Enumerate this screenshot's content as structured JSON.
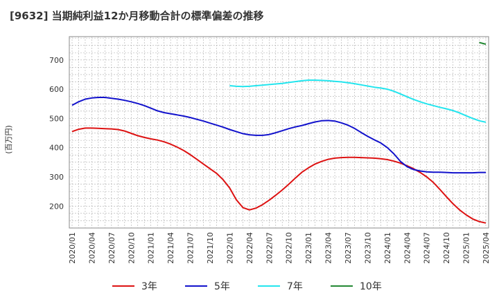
{
  "chart_data": {
    "type": "line",
    "title": "[9632]  当期純利益12か月移動合計の標準偏差の推移",
    "ylabel": "(百万円)",
    "xlabel": "",
    "ylim": [
      125,
      780
    ],
    "yticks": [
      200,
      300,
      400,
      500,
      600,
      700
    ],
    "x_ticks": [
      "2020/01",
      "2020/04",
      "2020/07",
      "2020/10",
      "2021/01",
      "2021/04",
      "2021/07",
      "2021/10",
      "2022/01",
      "2022/04",
      "2022/07",
      "2022/10",
      "2023/01",
      "2023/04",
      "2023/07",
      "2023/10",
      "2024/01",
      "2024/04",
      "2024/07",
      "2024/10",
      "2025/01",
      "2025/04"
    ],
    "grid": true,
    "legend_position": "bottom",
    "series": [
      {
        "name": "3年",
        "color": "#dd1111",
        "points": [
          [
            "2020/01",
            455
          ],
          [
            "2020/02",
            463
          ],
          [
            "2020/03",
            467
          ],
          [
            "2020/04",
            467
          ],
          [
            "2020/05",
            466
          ],
          [
            "2020/06",
            465
          ],
          [
            "2020/07",
            464
          ],
          [
            "2020/08",
            462
          ],
          [
            "2020/09",
            457
          ],
          [
            "2020/10",
            449
          ],
          [
            "2020/11",
            441
          ],
          [
            "2020/12",
            435
          ],
          [
            "2021/01",
            430
          ],
          [
            "2021/02",
            426
          ],
          [
            "2021/03",
            420
          ],
          [
            "2021/04",
            412
          ],
          [
            "2021/05",
            402
          ],
          [
            "2021/06",
            390
          ],
          [
            "2021/07",
            376
          ],
          [
            "2021/08",
            360
          ],
          [
            "2021/09",
            344
          ],
          [
            "2021/10",
            328
          ],
          [
            "2021/11",
            312
          ],
          [
            "2021/12",
            290
          ],
          [
            "2022/01",
            262
          ],
          [
            "2022/02",
            222
          ],
          [
            "2022/03",
            195
          ],
          [
            "2022/04",
            187
          ],
          [
            "2022/05",
            193
          ],
          [
            "2022/06",
            205
          ],
          [
            "2022/07",
            220
          ],
          [
            "2022/08",
            237
          ],
          [
            "2022/09",
            255
          ],
          [
            "2022/10",
            275
          ],
          [
            "2022/11",
            296
          ],
          [
            "2022/12",
            316
          ],
          [
            "2023/01",
            331
          ],
          [
            "2023/02",
            344
          ],
          [
            "2023/03",
            353
          ],
          [
            "2023/04",
            360
          ],
          [
            "2023/05",
            364
          ],
          [
            "2023/06",
            366
          ],
          [
            "2023/07",
            367
          ],
          [
            "2023/08",
            367
          ],
          [
            "2023/09",
            366
          ],
          [
            "2023/10",
            365
          ],
          [
            "2023/11",
            364
          ],
          [
            "2023/12",
            362
          ],
          [
            "2024/01",
            359
          ],
          [
            "2024/02",
            354
          ],
          [
            "2024/03",
            347
          ],
          [
            "2024/04",
            338
          ],
          [
            "2024/05",
            328
          ],
          [
            "2024/06",
            315
          ],
          [
            "2024/07",
            300
          ],
          [
            "2024/08",
            281
          ],
          [
            "2024/09",
            257
          ],
          [
            "2024/10",
            232
          ],
          [
            "2024/11",
            208
          ],
          [
            "2024/12",
            187
          ],
          [
            "2025/01",
            170
          ],
          [
            "2025/02",
            156
          ],
          [
            "2025/03",
            147
          ],
          [
            "2025/04",
            142
          ]
        ]
      },
      {
        "name": "5年",
        "color": "#1111cc",
        "points": [
          [
            "2020/01",
            545
          ],
          [
            "2020/02",
            557
          ],
          [
            "2020/03",
            566
          ],
          [
            "2020/04",
            570
          ],
          [
            "2020/05",
            572
          ],
          [
            "2020/06",
            572
          ],
          [
            "2020/07",
            569
          ],
          [
            "2020/08",
            566
          ],
          [
            "2020/09",
            562
          ],
          [
            "2020/10",
            557
          ],
          [
            "2020/11",
            551
          ],
          [
            "2020/12",
            544
          ],
          [
            "2021/01",
            535
          ],
          [
            "2021/02",
            526
          ],
          [
            "2021/03",
            520
          ],
          [
            "2021/04",
            516
          ],
          [
            "2021/05",
            512
          ],
          [
            "2021/06",
            508
          ],
          [
            "2021/07",
            503
          ],
          [
            "2021/08",
            497
          ],
          [
            "2021/09",
            491
          ],
          [
            "2021/10",
            484
          ],
          [
            "2021/11",
            477
          ],
          [
            "2021/12",
            470
          ],
          [
            "2022/01",
            462
          ],
          [
            "2022/02",
            455
          ],
          [
            "2022/03",
            448
          ],
          [
            "2022/04",
            444
          ],
          [
            "2022/05",
            442
          ],
          [
            "2022/06",
            442
          ],
          [
            "2022/07",
            445
          ],
          [
            "2022/08",
            451
          ],
          [
            "2022/09",
            458
          ],
          [
            "2022/10",
            465
          ],
          [
            "2022/11",
            471
          ],
          [
            "2022/12",
            476
          ],
          [
            "2023/01",
            482
          ],
          [
            "2023/02",
            488
          ],
          [
            "2023/03",
            492
          ],
          [
            "2023/04",
            493
          ],
          [
            "2023/05",
            491
          ],
          [
            "2023/06",
            485
          ],
          [
            "2023/07",
            477
          ],
          [
            "2023/08",
            466
          ],
          [
            "2023/09",
            452
          ],
          [
            "2023/10",
            439
          ],
          [
            "2023/11",
            427
          ],
          [
            "2023/12",
            416
          ],
          [
            "2024/01",
            400
          ],
          [
            "2024/02",
            379
          ],
          [
            "2024/03",
            353
          ],
          [
            "2024/04",
            335
          ],
          [
            "2024/05",
            325
          ],
          [
            "2024/06",
            320
          ],
          [
            "2024/07",
            317
          ],
          [
            "2024/08",
            316
          ],
          [
            "2024/09",
            316
          ],
          [
            "2024/10",
            315
          ],
          [
            "2024/11",
            314
          ],
          [
            "2024/12",
            314
          ],
          [
            "2025/01",
            314
          ],
          [
            "2025/02",
            314
          ],
          [
            "2025/03",
            315
          ],
          [
            "2025/04",
            315
          ]
        ]
      },
      {
        "name": "7年",
        "color": "#22e5ee",
        "points": [
          [
            "2022/01",
            612
          ],
          [
            "2022/02",
            610
          ],
          [
            "2022/03",
            609
          ],
          [
            "2022/04",
            610
          ],
          [
            "2022/05",
            612
          ],
          [
            "2022/06",
            614
          ],
          [
            "2022/07",
            616
          ],
          [
            "2022/08",
            618
          ],
          [
            "2022/09",
            620
          ],
          [
            "2022/10",
            623
          ],
          [
            "2022/11",
            626
          ],
          [
            "2022/12",
            629
          ],
          [
            "2023/01",
            631
          ],
          [
            "2023/02",
            631
          ],
          [
            "2023/03",
            630
          ],
          [
            "2023/04",
            629
          ],
          [
            "2023/05",
            627
          ],
          [
            "2023/06",
            625
          ],
          [
            "2023/07",
            622
          ],
          [
            "2023/08",
            619
          ],
          [
            "2023/09",
            615
          ],
          [
            "2023/10",
            611
          ],
          [
            "2023/11",
            607
          ],
          [
            "2023/12",
            604
          ],
          [
            "2024/01",
            600
          ],
          [
            "2024/02",
            593
          ],
          [
            "2024/03",
            584
          ],
          [
            "2024/04",
            574
          ],
          [
            "2024/05",
            565
          ],
          [
            "2024/06",
            557
          ],
          [
            "2024/07",
            550
          ],
          [
            "2024/08",
            544
          ],
          [
            "2024/09",
            538
          ],
          [
            "2024/10",
            533
          ],
          [
            "2024/11",
            527
          ],
          [
            "2024/12",
            519
          ],
          [
            "2025/01",
            509
          ],
          [
            "2025/02",
            500
          ],
          [
            "2025/03",
            492
          ],
          [
            "2025/04",
            487
          ]
        ]
      },
      {
        "name": "10年",
        "color": "#228833",
        "points": [
          [
            "2025/03",
            760
          ],
          [
            "2025/04",
            754
          ]
        ]
      }
    ]
  }
}
